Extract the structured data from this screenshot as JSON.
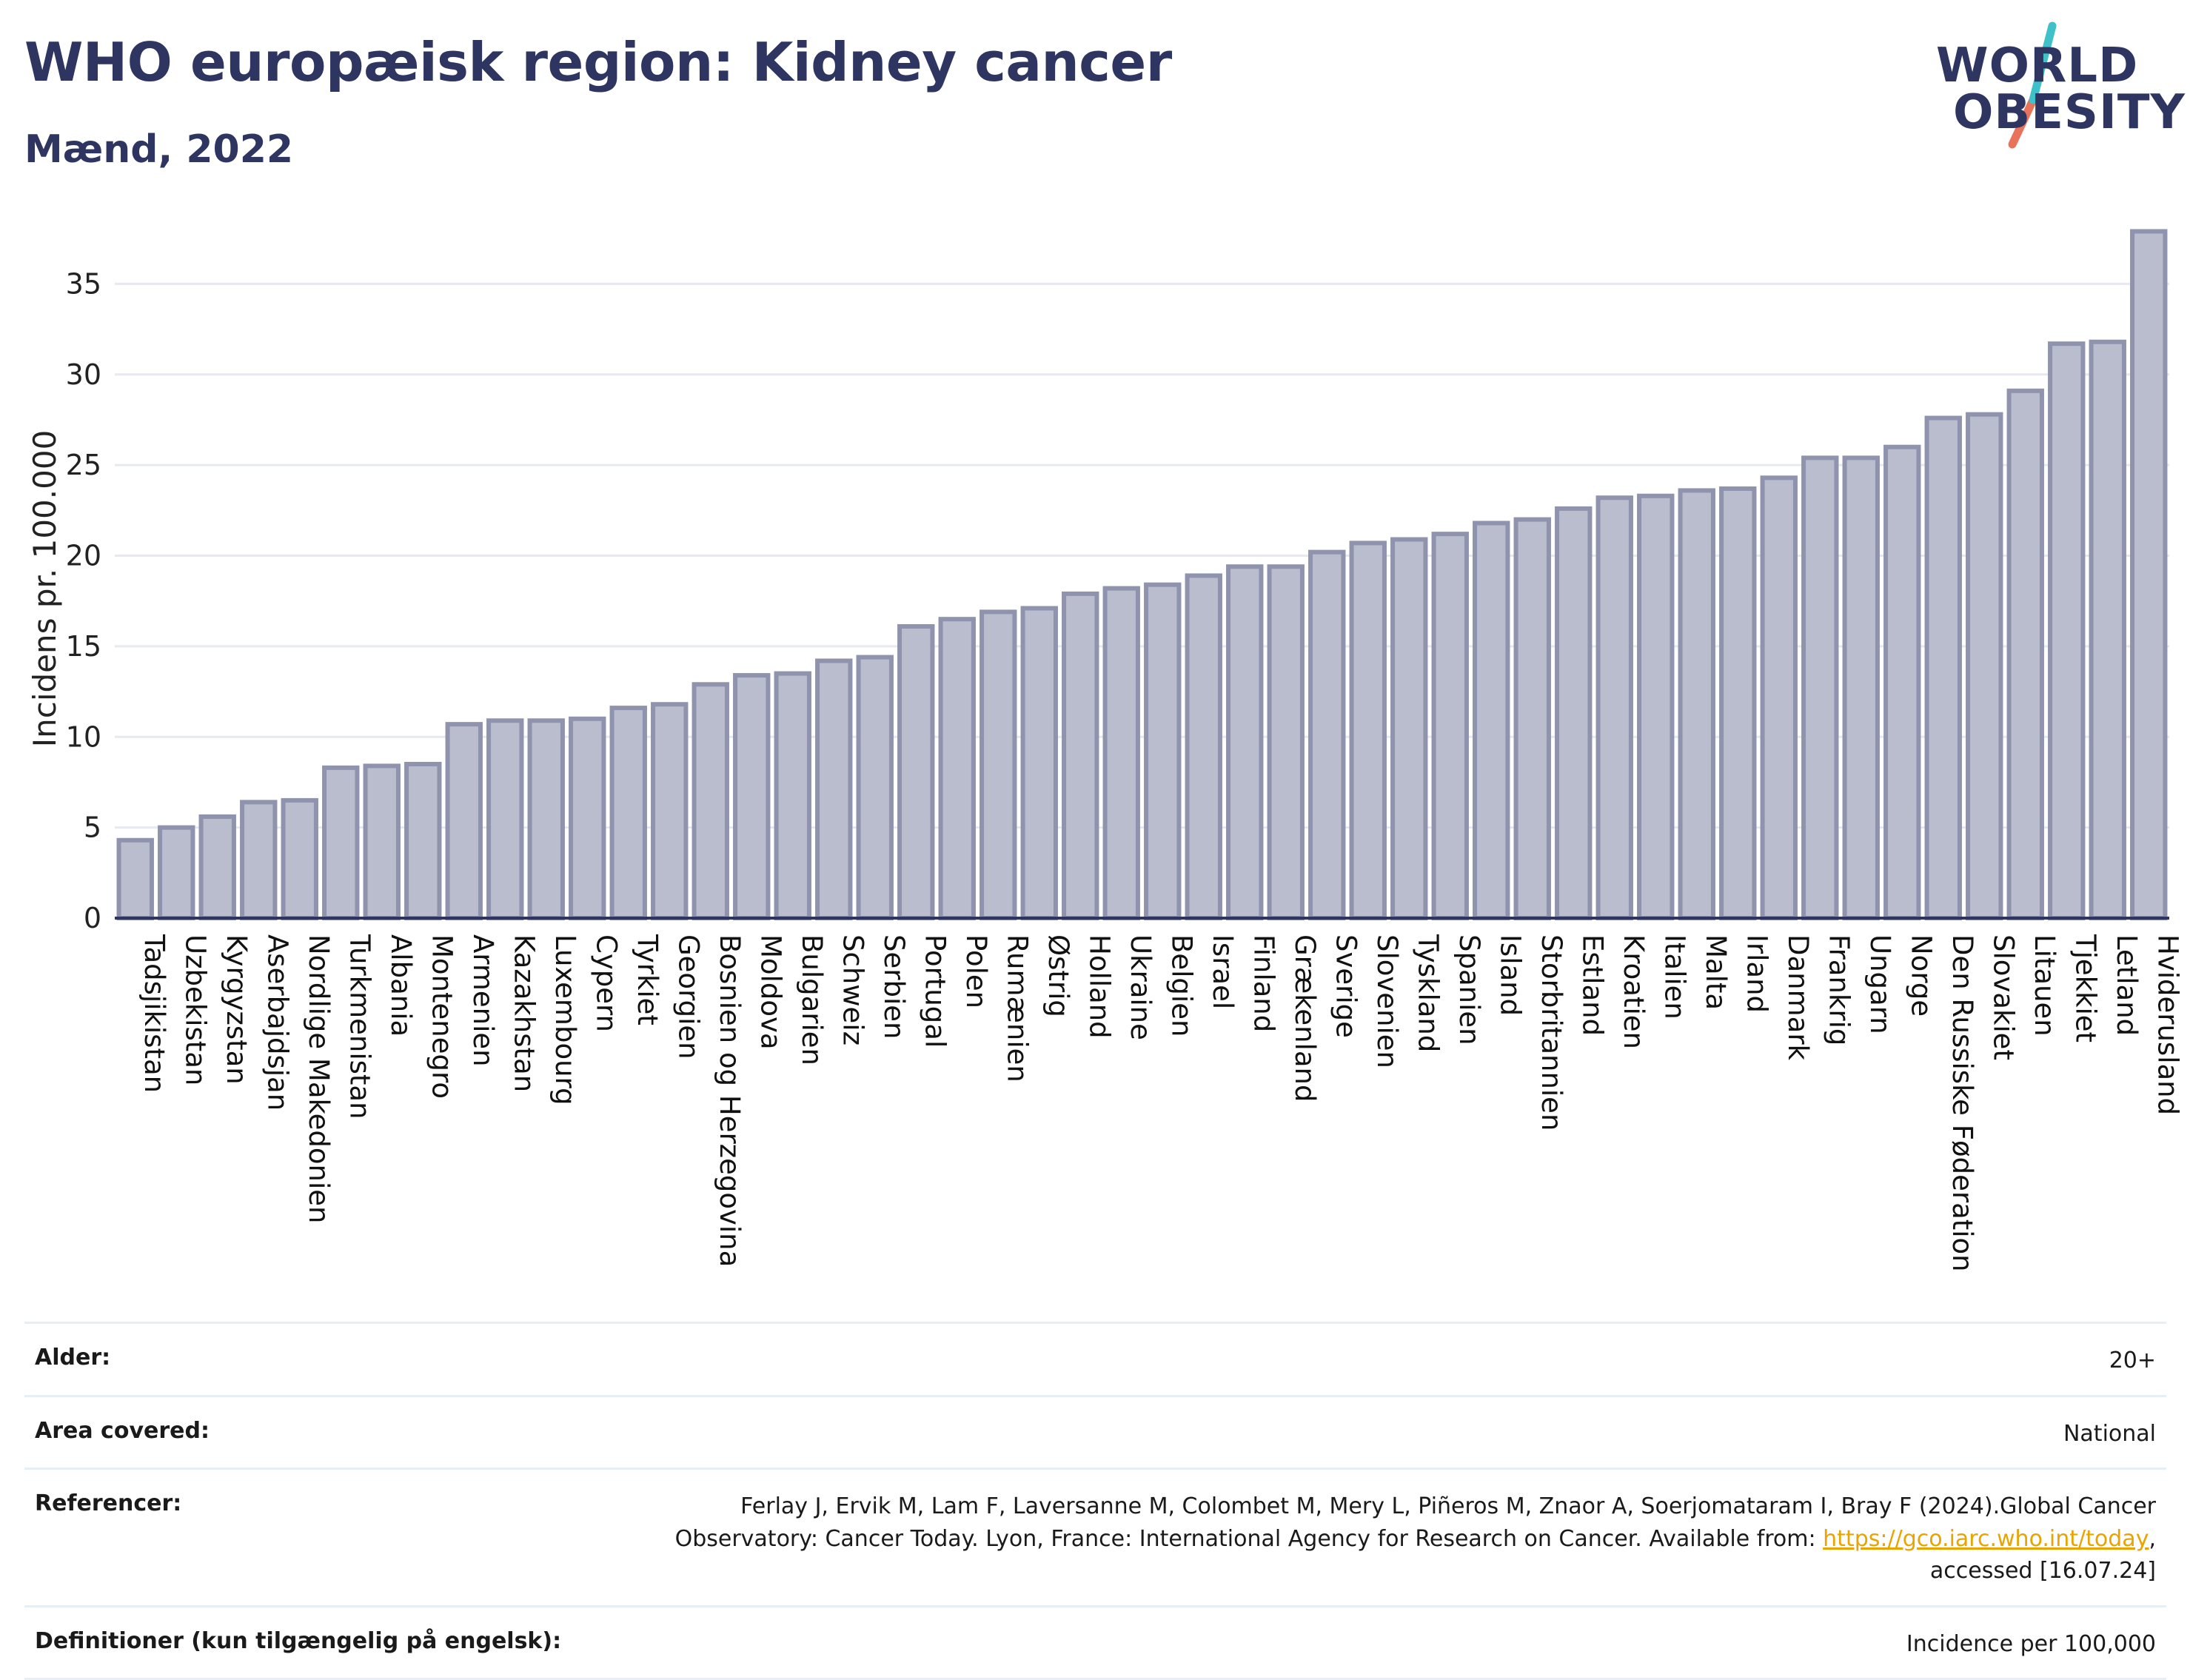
{
  "header": {
    "title": "WHO europæisk region: Kidney cancer",
    "subtitle": "Mænd, 2022"
  },
  "logo": {
    "line1": "WORLD",
    "line2": "OBESITY",
    "slash_colors": [
      "#3fc1c9",
      "#e8735a"
    ]
  },
  "colors": {
    "bar_fill": "#b9bdcd",
    "bar_stroke": "#8f93ad",
    "text": "#2d3560",
    "axis": "#2d3560",
    "grid": "#e6eaf0",
    "link": "#e8a400"
  },
  "chart_data": {
    "type": "bar",
    "title": "WHO europæisk region: Kidney cancer",
    "subtitle": "Mænd, 2022",
    "xlabel": "",
    "ylabel": "Incidens pr. 100.000",
    "ylim": [
      0,
      38
    ],
    "yticks": [
      0,
      5,
      10,
      15,
      20,
      25,
      30,
      35
    ],
    "grid": true,
    "categories": [
      "Tadsjikistan",
      "Uzbekistan",
      "Kyrgyzstan",
      "Aserbajdsjan",
      "Nordlige Makedonien",
      "Turkmenistan",
      "Albania",
      "Montenegro",
      "Armenien",
      "Kazakhstan",
      "Luxembourg",
      "Cypern",
      "Tyrkiet",
      "Georgien",
      "Bosnien og Herzegovina",
      "Moldova",
      "Bulgarien",
      "Schweiz",
      "Serbien",
      "Portugal",
      "Polen",
      "Rumænien",
      "Østrig",
      "Holland",
      "Ukraine",
      "Belgien",
      "Israel",
      "Finland",
      "Grækenland",
      "Sverige",
      "Slovenien",
      "Tyskland",
      "Spanien",
      "Island",
      "Storbritannien",
      "Estland",
      "Kroatien",
      "Italien",
      "Malta",
      "Irland",
      "Danmark",
      "Frankrig",
      "Ungarn",
      "Norge",
      "Den Russiske Føderation",
      "Slovakiet",
      "Litauen",
      "Tjekkiet",
      "Letland",
      "Hviderusland"
    ],
    "values": [
      4.3,
      5.0,
      5.6,
      6.4,
      6.5,
      8.3,
      8.4,
      8.5,
      10.7,
      10.9,
      10.9,
      11.0,
      11.6,
      11.8,
      12.9,
      13.4,
      13.5,
      14.2,
      14.4,
      16.1,
      16.5,
      16.9,
      17.1,
      17.9,
      18.2,
      18.4,
      18.9,
      19.4,
      19.4,
      20.2,
      20.7,
      20.9,
      21.2,
      21.8,
      22.0,
      22.6,
      23.2,
      23.3,
      23.6,
      23.7,
      24.3,
      25.4,
      25.4,
      26.0,
      27.6,
      27.8,
      29.1,
      31.7,
      31.8,
      37.9
    ]
  },
  "meta": {
    "age_label": "Alder:",
    "age_value": "20+",
    "area_label": "Area covered:",
    "area_value": "National",
    "ref_label": "Referencer:",
    "ref_text_1": "Ferlay J, Ervik M, Lam F, Laversanne M, Colombet M, Mery L, Piñeros M, Znaor A, Soerjomataram I, Bray F (2024).Global Cancer",
    "ref_text_2": "Observatory: Cancer Today. Lyon, France: International Agency for Research on Cancer. Available from: ",
    "ref_link": "https://gco.iarc.who.int/today",
    "ref_text_3": ",",
    "ref_text_4": "accessed [16.07.24]",
    "def_label": "Definitioner (kun tilgængelig på engelsk):",
    "def_value": "Incidence per 100,000"
  }
}
